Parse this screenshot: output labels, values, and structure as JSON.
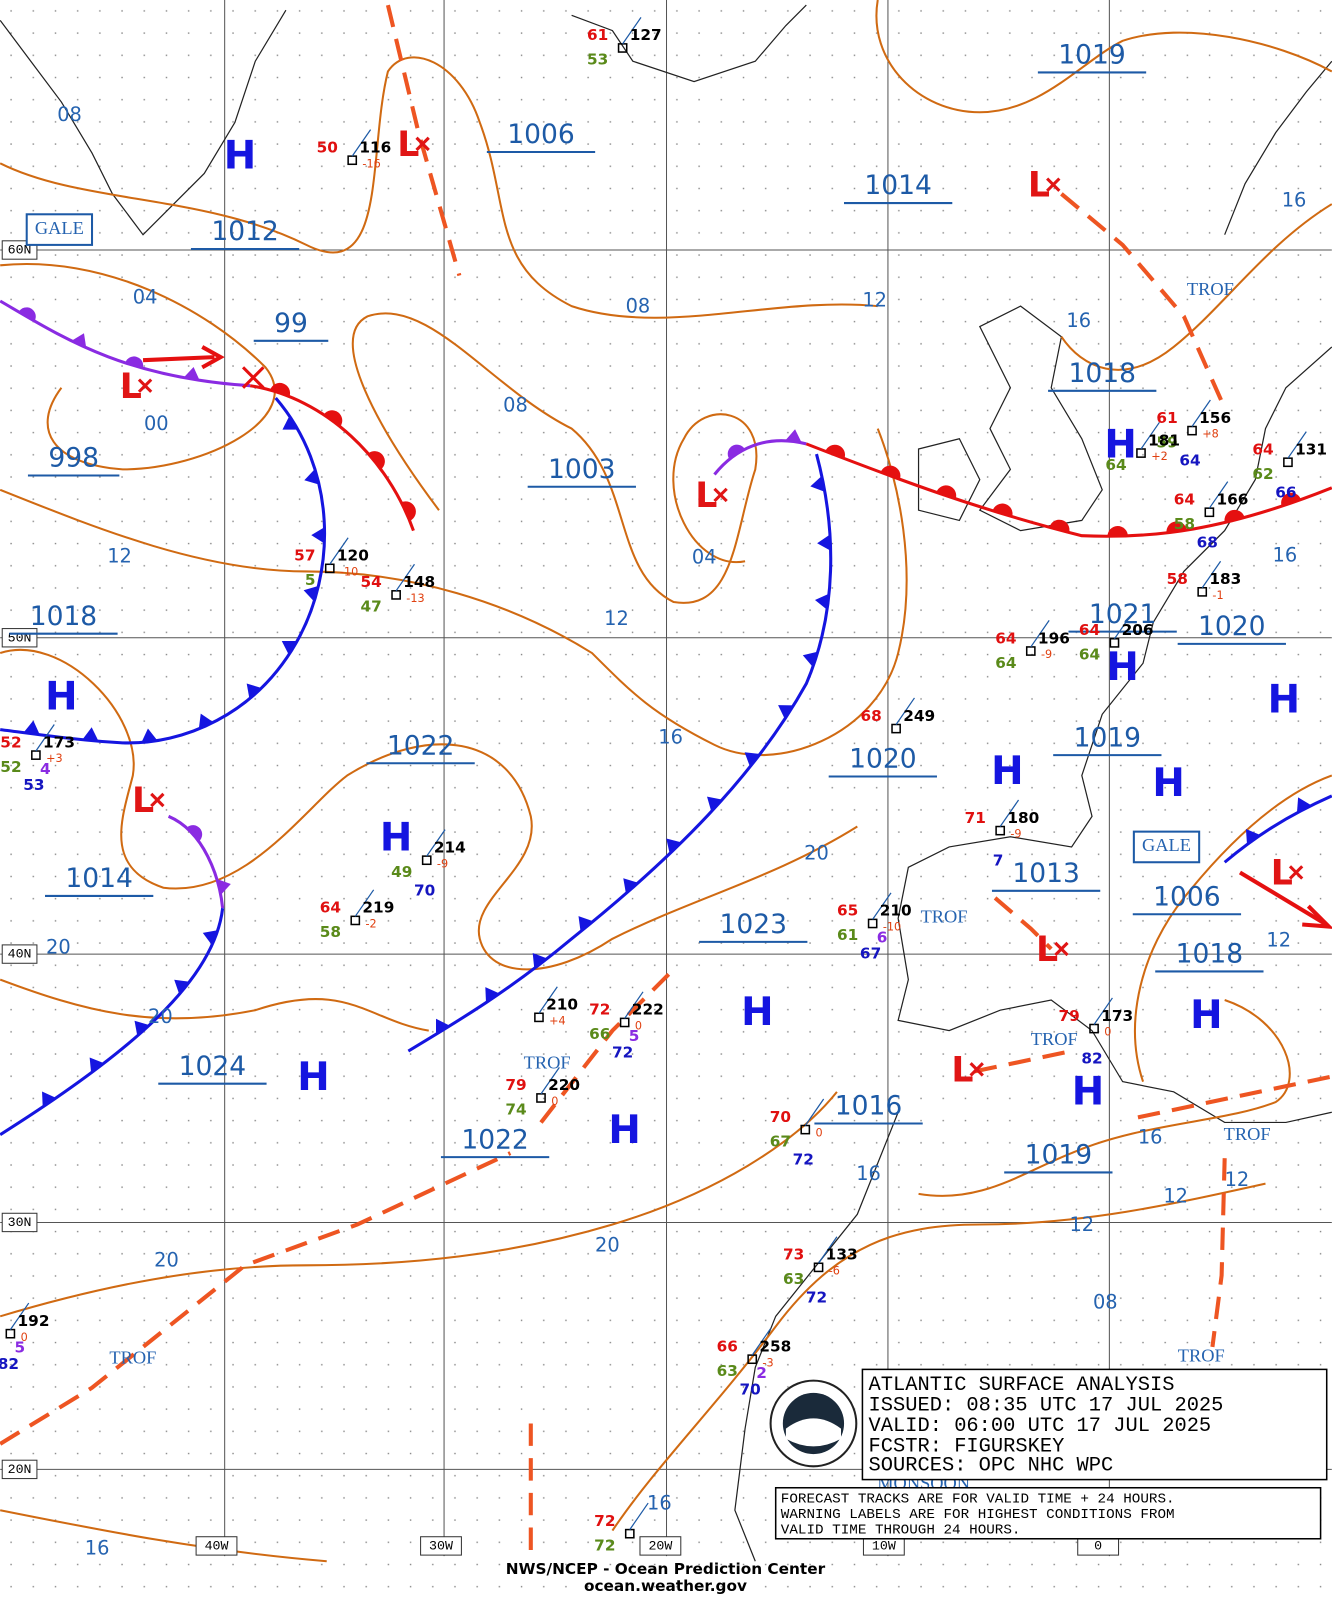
{
  "title_block": {
    "lines": [
      "ATLANTIC SURFACE ANALYSIS",
      "ISSUED:  08:35 UTC 17 JUL 2025",
      "VALID:   06:00 UTC 17 JUL 2025",
      "FCSTR:   FIGURSKEY",
      "SOURCES: OPC NHC WPC"
    ],
    "note": [
      "FORECAST TRACKS ARE FOR VALID TIME + 24 HOURS.",
      "WARNING LABELS ARE FOR HIGHEST CONDITIONS FROM",
      "VALID TIME THROUGH 24 HOURS."
    ]
  },
  "footer": [
    "NWS/NCEP - Ocean Prediction Center",
    "ocean.weather.gov"
  ],
  "grid_labels": {
    "lat": [
      "60N",
      "50N",
      "40N",
      "30N",
      "20N"
    ],
    "lon": [
      "40W",
      "30W",
      "20W",
      "10W",
      "0"
    ]
  },
  "pressure_labels": [
    "1019",
    "1006",
    "1014",
    "1012",
    "99",
    "1018",
    "998",
    "1003",
    "1018",
    "1021",
    "1020",
    "1019",
    "1022",
    "1020",
    "1014",
    "1013",
    "1006",
    "1023",
    "1018",
    "1024",
    "1016",
    "1022",
    "1019"
  ],
  "isobar_labels": [
    "08",
    "04",
    "00",
    "12",
    "08",
    "08",
    "04",
    "12",
    "12",
    "16",
    "16",
    "16",
    "16",
    "20",
    "20",
    "20",
    "12",
    "16",
    "12",
    "12",
    "16",
    "12",
    "20",
    "20",
    "08",
    "16",
    "16"
  ],
  "highs": [
    "H",
    "H",
    "H",
    "H",
    "H",
    "H",
    "H",
    "H",
    "H",
    "H",
    "H",
    "H",
    "H"
  ],
  "lows": [
    "L",
    "L",
    "L",
    "L",
    "L",
    "L",
    "L",
    "L"
  ],
  "warnings": [
    "GALE",
    "GALE"
  ],
  "features": [
    "TROF",
    "TROF",
    "TROF",
    "TROF",
    "TROF",
    "TROF",
    "TROF",
    "MONSOON"
  ],
  "stations": [
    {
      "temp": "61",
      "pressure": "127",
      "dewpoint": "53"
    },
    {
      "temp": "50",
      "pressure": "116",
      "tendency": "-16"
    },
    {
      "temp": "57",
      "pressure": "120",
      "tendency": "-10",
      "dewpoint": "5"
    },
    {
      "temp": "54",
      "pressure": "148",
      "tendency": "-13",
      "dewpoint": "47"
    },
    {
      "temp": "52",
      "pressure": "173",
      "tendency": "+3",
      "dewpoint": "52",
      "wave": "4",
      "sea": "53"
    },
    {
      "pressure": "214",
      "tendency": "-9",
      "dewpoint": "49",
      "sea": "70"
    },
    {
      "temp": "64",
      "pressure": "219",
      "tendency": "-2",
      "dewpoint": "58"
    },
    {
      "pressure": "210",
      "tendency": "+4"
    },
    {
      "temp": "72",
      "pressure": "222",
      "tendency": "0",
      "dewpoint": "66",
      "wave": "5",
      "sea": "72"
    },
    {
      "temp": "79",
      "pressure": "220",
      "tendency": "0",
      "dewpoint": "74"
    },
    {
      "temp": "70",
      "tendency": "0",
      "dewpoint": "67",
      "sea": "72"
    },
    {
      "temp": "73",
      "pressure": "133",
      "tendency": "-6",
      "dewpoint": "63",
      "sea": "72"
    },
    {
      "temp": "66",
      "pressure": "258",
      "tendency": "-3",
      "dewpoint": "63",
      "wave": "2",
      "sea": "70"
    },
    {
      "temp": "72",
      "dewpoint": "72"
    },
    {
      "pressure": "192",
      "tendency": "0",
      "wave": "5",
      "sea": "82"
    },
    {
      "temp": "61",
      "pressure": "156",
      "tendency": "+8",
      "dewpoint": "59",
      "sea": "64"
    },
    {
      "temp": "64",
      "pressure": "166",
      "dewpoint": "58",
      "sea": "68"
    },
    {
      "temp": "64",
      "pressure": "131",
      "dewpoint": "62",
      "sea": "66"
    },
    {
      "temp": "58",
      "pressure": "183",
      "tendency": "-1"
    },
    {
      "temp": "64",
      "pressure": "196",
      "tendency": "-9",
      "dewpoint": "64"
    },
    {
      "temp": "64",
      "pressure": "206",
      "dewpoint": "64"
    },
    {
      "temp": "68",
      "pressure": "249"
    },
    {
      "temp": "71",
      "pressure": "180",
      "tendency": "-9",
      "sea": "7"
    },
    {
      "temp": "65",
      "pressure": "210",
      "tendency": "-10",
      "dewpoint": "61",
      "wave": "6",
      "sea": "67"
    },
    {
      "temp": "79",
      "pressure": "173",
      "tendency": "0",
      "sea": "82"
    },
    {
      "pressure": "181",
      "tendency": "+2",
      "dewpoint": "64"
    }
  ]
}
